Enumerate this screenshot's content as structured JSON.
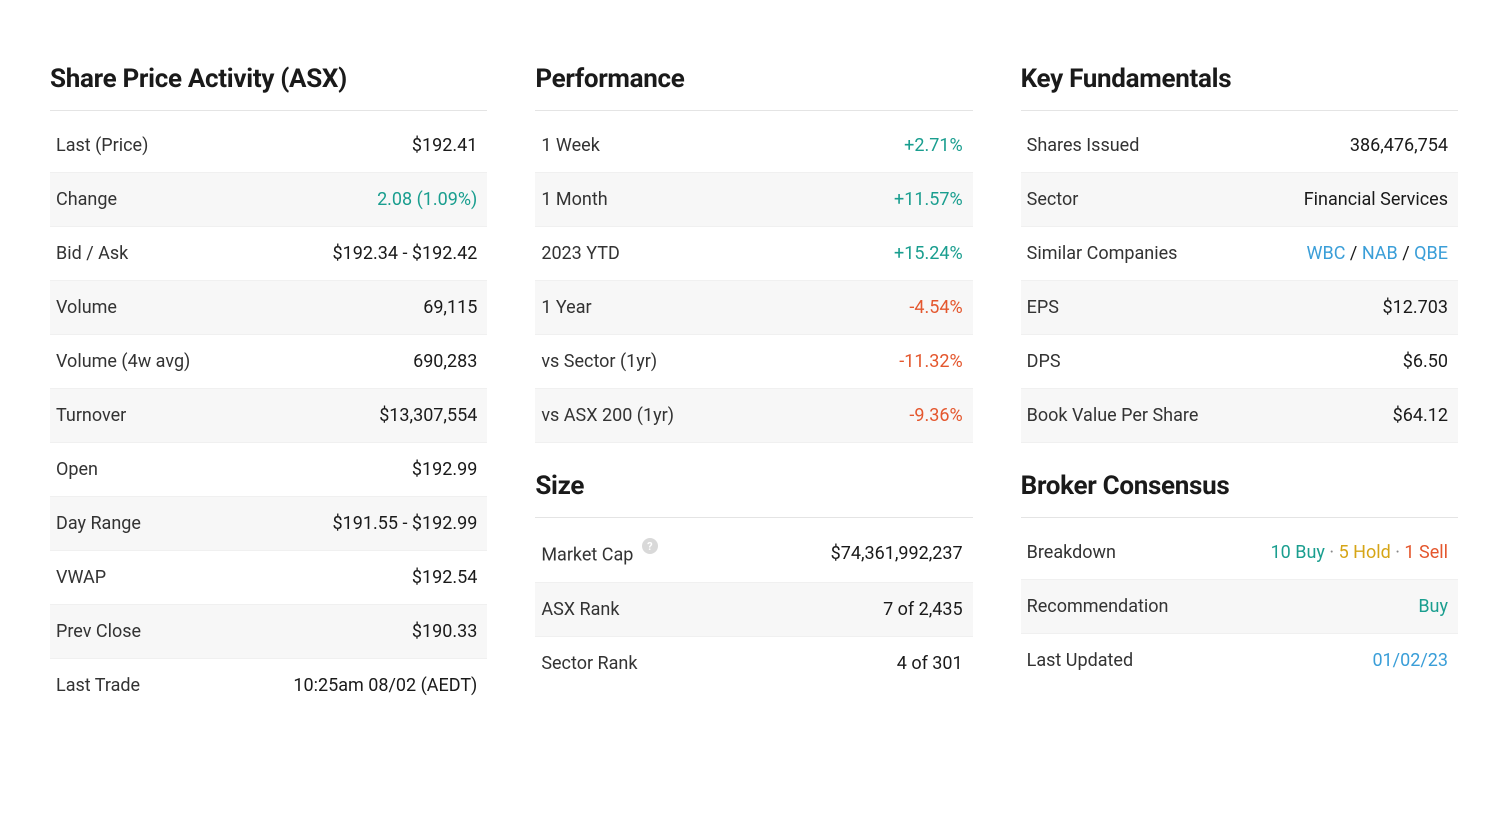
{
  "colors": {
    "positive": "#1a9e8f",
    "negative": "#e4572e",
    "link": "#3a9ed8",
    "hold": "#d6a516",
    "text": "#1a1a1a",
    "label": "#333333",
    "row_alt_bg": "#f7f7f7",
    "divider": "#e4e4e4"
  },
  "sharePrice": {
    "title": "Share Price Activity (ASX)",
    "rows": {
      "lastPrice": {
        "label": "Last (Price)",
        "value": "$192.41"
      },
      "change": {
        "label": "Change",
        "value": "2.08 (1.09%)",
        "style": "pos"
      },
      "bidAsk": {
        "label": "Bid / Ask",
        "value": "$192.34 - $192.42"
      },
      "volume": {
        "label": "Volume",
        "value": "69,115"
      },
      "volume4w": {
        "label": "Volume (4w avg)",
        "value": "690,283"
      },
      "turnover": {
        "label": "Turnover",
        "value": "$13,307,554"
      },
      "open": {
        "label": "Open",
        "value": "$192.99"
      },
      "dayRange": {
        "label": "Day Range",
        "value": "$191.55 - $192.99"
      },
      "vwap": {
        "label": "VWAP",
        "value": "$192.54"
      },
      "prevClose": {
        "label": "Prev Close",
        "value": "$190.33"
      },
      "lastTrade": {
        "label": "Last Trade",
        "value": "10:25am 08/02 (AEDT)"
      }
    }
  },
  "performance": {
    "title": "Performance",
    "rows": {
      "w1": {
        "label": "1 Week",
        "value": "+2.71%",
        "style": "pos"
      },
      "m1": {
        "label": "1 Month",
        "value": "+11.57%",
        "style": "pos"
      },
      "ytd": {
        "label": "2023 YTD",
        "value": "+15.24%",
        "style": "pos"
      },
      "y1": {
        "label": "1 Year",
        "value": "-4.54%",
        "style": "neg"
      },
      "vsSector": {
        "label": "vs Sector (1yr)",
        "value": "-11.32%",
        "style": "neg"
      },
      "vsAsx": {
        "label": "vs ASX 200 (1yr)",
        "value": "-9.36%",
        "style": "neg"
      }
    }
  },
  "size": {
    "title": "Size",
    "rows": {
      "marketCap": {
        "label": "Market Cap",
        "value": "$74,361,992,237"
      },
      "asxRank": {
        "label": "ASX Rank",
        "value": "7 of 2,435"
      },
      "sectorRank": {
        "label": "Sector Rank",
        "value": "4 of 301"
      }
    }
  },
  "fundamentals": {
    "title": "Key Fundamentals",
    "rows": {
      "sharesIssued": {
        "label": "Shares Issued",
        "value": "386,476,754"
      },
      "sector": {
        "label": "Sector",
        "value": "Financial Services"
      },
      "similar": {
        "label": "Similar Companies",
        "c1": "WBC",
        "c2": "NAB",
        "c3": "QBE"
      },
      "eps": {
        "label": "EPS",
        "value": "$12.703"
      },
      "dps": {
        "label": "DPS",
        "value": "$6.50"
      },
      "bookValue": {
        "label": "Book Value Per Share",
        "value": "$64.12"
      }
    }
  },
  "broker": {
    "title": "Broker Consensus",
    "rows": {
      "breakdown": {
        "label": "Breakdown",
        "buy": "10 Buy",
        "hold": "5 Hold",
        "sell": "1 Sell"
      },
      "recommendation": {
        "label": "Recommendation",
        "value": "Buy",
        "style": "pos"
      },
      "lastUpdated": {
        "label": "Last Updated",
        "value": "01/02/23",
        "style": "link"
      }
    }
  }
}
